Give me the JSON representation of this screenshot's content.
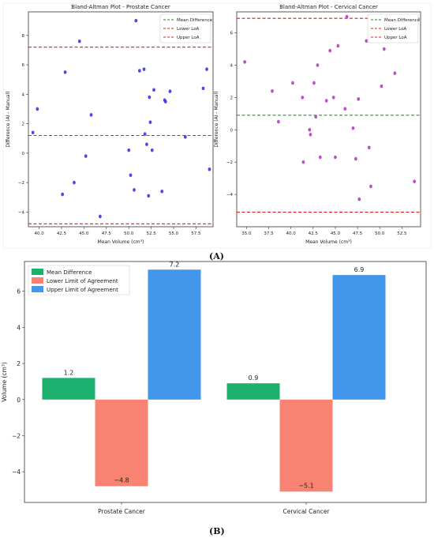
{
  "panel_labels": {
    "a": "(A)",
    "b": "(B)"
  },
  "colors": {
    "prostate_point": "#3a35e0",
    "cervical_point": "#b63cc4",
    "mean_line": "#138a13",
    "loa_line": "#d61c1c",
    "bar_mean": "#1bb06e",
    "bar_lower": "#f98373",
    "bar_upper": "#4397ea"
  },
  "chart_data": [
    {
      "type": "scatter",
      "title": "Bland-Altman Plot - Prostate Cancer",
      "xlabel": "Mean Volume (cm³)",
      "ylabel": "Difference (AI - Manual)",
      "xlim": [
        38.8,
        59.4
      ],
      "ylim": [
        -5.0,
        9.6
      ],
      "xticks": [
        40.0,
        42.5,
        45.0,
        47.5,
        50.0,
        52.5,
        55.0,
        57.5
      ],
      "xtick_labels": [
        "40.0",
        "42.5",
        "45.0",
        "47.5",
        "50.0",
        "52.5",
        "55.0",
        "57.5"
      ],
      "yticks": [
        -4,
        -2,
        0,
        2,
        4,
        6,
        8
      ],
      "ytick_labels": [
        "−4",
        "−2",
        "0",
        "2",
        "4",
        "6",
        "8"
      ],
      "lines": {
        "mean": 1.2,
        "lower": -4.8,
        "upper": 7.2
      },
      "legend": [
        "Mean Difference",
        "Lower LoA",
        "Upper LoA"
      ],
      "legend_position": "top-right",
      "points": [
        [
          39.3,
          1.4
        ],
        [
          39.8,
          3.0
        ],
        [
          42.6,
          -2.8
        ],
        [
          42.9,
          5.5
        ],
        [
          43.9,
          -2.0
        ],
        [
          44.5,
          7.6
        ],
        [
          45.2,
          -0.2
        ],
        [
          45.8,
          2.6
        ],
        [
          46.8,
          -4.3
        ],
        [
          50.0,
          0.2
        ],
        [
          50.2,
          -1.5
        ],
        [
          50.6,
          -2.5
        ],
        [
          50.8,
          9.0
        ],
        [
          51.2,
          5.6
        ],
        [
          51.7,
          5.7
        ],
        [
          51.8,
          1.3
        ],
        [
          52.0,
          0.6
        ],
        [
          52.2,
          -2.9
        ],
        [
          52.3,
          3.8
        ],
        [
          52.4,
          2.1
        ],
        [
          52.6,
          0.2
        ],
        [
          52.8,
          4.3
        ],
        [
          53.7,
          -2.6
        ],
        [
          54.0,
          3.6
        ],
        [
          54.1,
          3.5
        ],
        [
          54.6,
          4.2
        ],
        [
          56.3,
          1.1
        ],
        [
          58.3,
          4.4
        ],
        [
          58.7,
          5.7
        ],
        [
          59.0,
          -1.1
        ]
      ]
    },
    {
      "type": "scatter",
      "title": "Bland-Altman Plot - Cervical Cancer",
      "xlabel": "Mean Volume (cm³)",
      "ylabel": "Difference (AI - Manual)",
      "xlim": [
        33.9,
        54.6
      ],
      "ylim": [
        -6.0,
        7.3
      ],
      "xticks": [
        35.0,
        37.5,
        40.0,
        42.5,
        45.0,
        47.5,
        50.0,
        52.5
      ],
      "xtick_labels": [
        "35.0",
        "37.5",
        "40.0",
        "42.5",
        "45.0",
        "47.5",
        "50.0",
        "52.5"
      ],
      "yticks": [
        -4,
        -2,
        0,
        2,
        4,
        6
      ],
      "ytick_labels": [
        "−4",
        "−2",
        "0",
        "2",
        "4",
        "6"
      ],
      "lines": {
        "mean": 0.9,
        "lower": -5.1,
        "upper": 6.9
      },
      "legend": [
        "Mean Difference",
        "Lower LoA",
        "Upper LoA"
      ],
      "legend_position": "top-right",
      "points": [
        [
          34.8,
          4.2
        ],
        [
          37.9,
          2.4
        ],
        [
          38.6,
          0.5
        ],
        [
          40.2,
          2.9
        ],
        [
          41.3,
          2.0
        ],
        [
          41.4,
          -2.0
        ],
        [
          42.1,
          0.0
        ],
        [
          42.2,
          -0.3
        ],
        [
          42.6,
          2.9
        ],
        [
          42.8,
          0.8
        ],
        [
          43.0,
          4.0
        ],
        [
          43.3,
          -1.7
        ],
        [
          44.0,
          1.8
        ],
        [
          44.4,
          4.9
        ],
        [
          44.8,
          2.0
        ],
        [
          45.0,
          -1.7
        ],
        [
          45.3,
          5.2
        ],
        [
          46.1,
          1.3
        ],
        [
          46.3,
          7.0
        ],
        [
          47.0,
          0.1
        ],
        [
          47.3,
          -1.8
        ],
        [
          47.6,
          1.9
        ],
        [
          47.7,
          -4.3
        ],
        [
          48.5,
          5.5
        ],
        [
          48.8,
          -1.1
        ],
        [
          49.0,
          -3.5
        ],
        [
          50.2,
          2.7
        ],
        [
          50.5,
          5.0
        ],
        [
          51.7,
          3.5
        ],
        [
          53.9,
          -3.2
        ]
      ]
    },
    {
      "type": "bar",
      "categories": [
        "Prostate Cancer",
        "Cervical Cancer"
      ],
      "ylabel": "Volume (cm³)",
      "ylim": [
        -5.7,
        7.65
      ],
      "yticks": [
        -4,
        -2,
        0,
        2,
        4,
        6
      ],
      "ytick_labels": [
        "−4",
        "−2",
        "0",
        "2",
        "4",
        "6"
      ],
      "legend_position": "top-left",
      "series": [
        {
          "name": "Mean Difference",
          "values": [
            1.2,
            0.9
          ],
          "labels": [
            "1.2",
            "0.9"
          ]
        },
        {
          "name": "Lower Limit of Agreement",
          "values": [
            -4.8,
            -5.1
          ],
          "labels": [
            "−4.8",
            "−5.1"
          ]
        },
        {
          "name": "Upper Limit of Agreement",
          "values": [
            7.2,
            6.9
          ],
          "labels": [
            "7.2",
            "6.9"
          ]
        }
      ]
    }
  ]
}
